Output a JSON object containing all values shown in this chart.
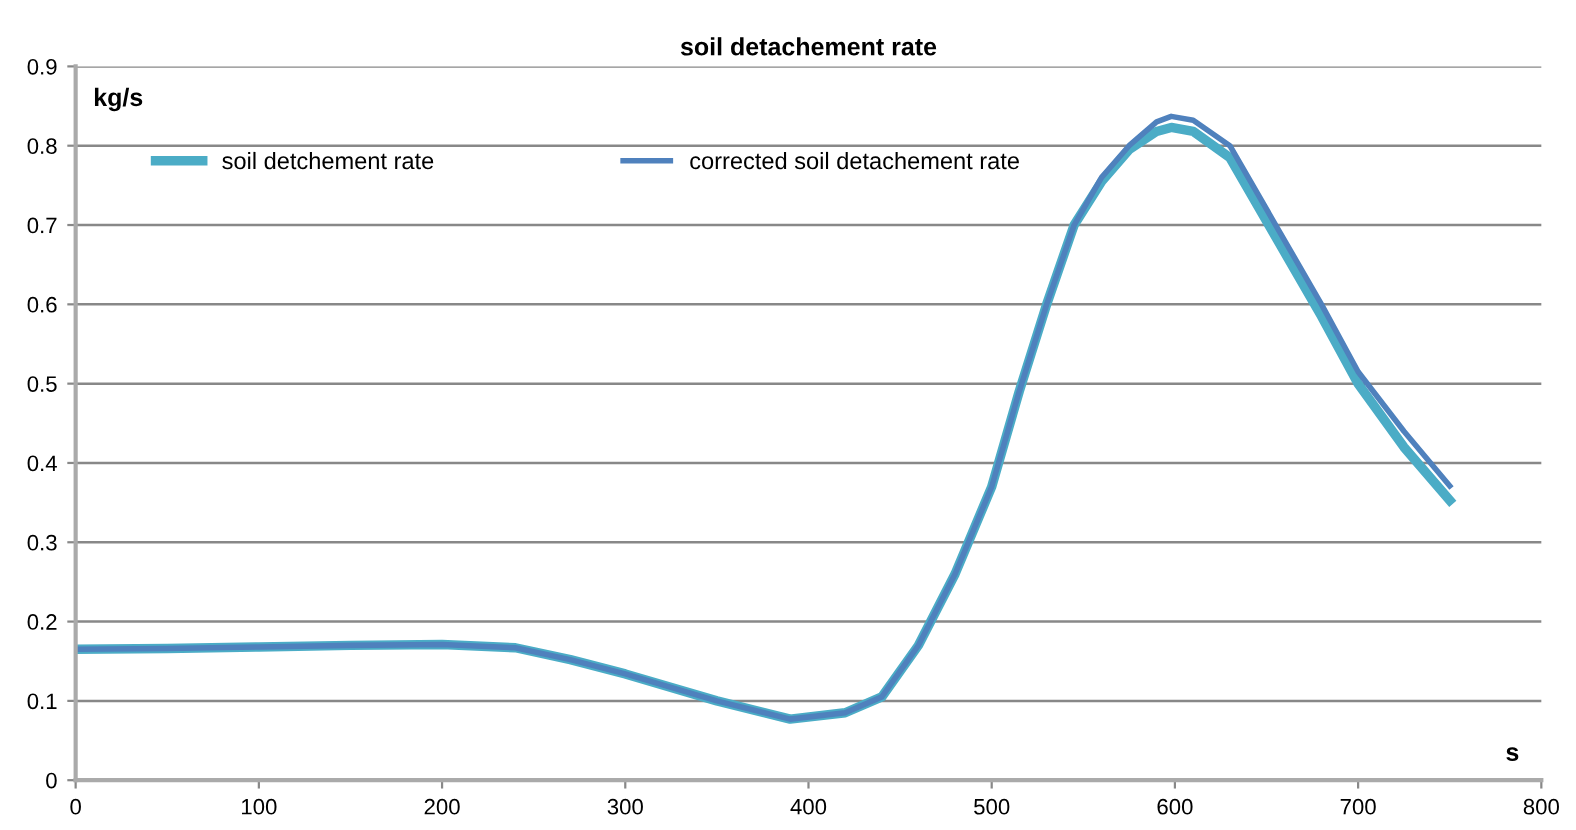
{
  "chart_data": {
    "type": "line",
    "title": "soil detachement rate",
    "xlabel": "s",
    "ylabel": "kg/s",
    "x": [
      0,
      50,
      100,
      150,
      200,
      240,
      270,
      300,
      350,
      390,
      420,
      440,
      460,
      480,
      500,
      515,
      530,
      545,
      560,
      575,
      590,
      598,
      610,
      630,
      655,
      680,
      700,
      725,
      750
    ],
    "series": [
      {
        "name": "soil detchement rate",
        "color": "#4bacc6",
        "values": [
          0.165,
          0.166,
          0.168,
          0.17,
          0.171,
          0.167,
          0.152,
          0.134,
          0.1,
          0.077,
          0.085,
          0.105,
          0.17,
          0.26,
          0.37,
          0.49,
          0.6,
          0.7,
          0.755,
          0.795,
          0.818,
          0.823,
          0.818,
          0.785,
          0.685,
          0.585,
          0.5,
          0.42,
          0.353
        ]
      },
      {
        "name": "corrected soil detachement rate",
        "color": "#4f81bd",
        "values": [
          0.165,
          0.166,
          0.168,
          0.17,
          0.171,
          0.167,
          0.152,
          0.134,
          0.1,
          0.077,
          0.085,
          0.105,
          0.17,
          0.26,
          0.37,
          0.49,
          0.6,
          0.7,
          0.76,
          0.8,
          0.83,
          0.837,
          0.832,
          0.8,
          0.7,
          0.6,
          0.515,
          0.44,
          0.371
        ]
      }
    ],
    "xlim": [
      0,
      800
    ],
    "xticks": [
      0,
      100,
      200,
      300,
      400,
      500,
      600,
      700,
      800
    ],
    "ylim": [
      0,
      0.9
    ],
    "yticks": [
      0,
      0.1,
      0.2,
      0.3,
      0.4,
      0.5,
      0.6,
      0.7,
      0.8,
      0.9
    ],
    "grid": "y",
    "legend": "top left",
    "marker": "none",
    "line_style": "solid"
  }
}
